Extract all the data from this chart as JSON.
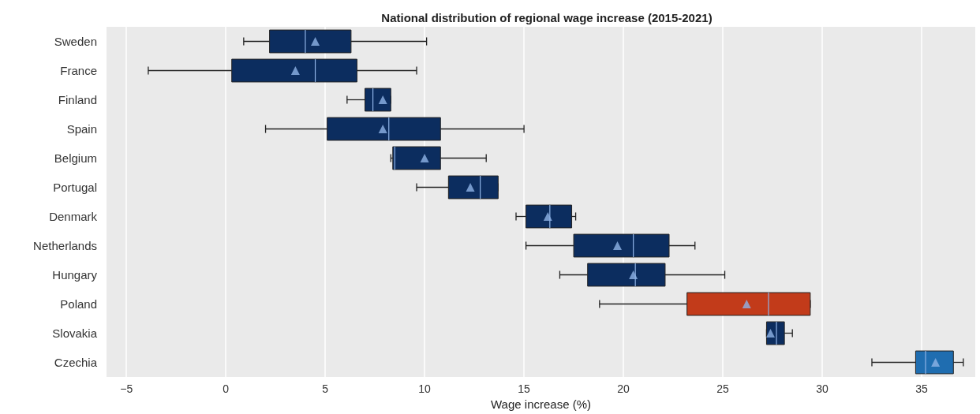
{
  "chart_data": {
    "type": "box",
    "title": "National distribution of regional wage increase (2015-2021)",
    "xlabel": "Wage increase (%)",
    "orientation": "horizontal",
    "categories": [
      "Sweden",
      "France",
      "Finland",
      "Spain",
      "Belgium",
      "Portugal",
      "Denmark",
      "Netherlands",
      "Hungary",
      "Poland",
      "Slovakia",
      "Czechia"
    ],
    "boxes": [
      {
        "low": 0.9,
        "q1": 2.2,
        "median": 4.0,
        "q3": 6.3,
        "high": 10.1,
        "mean": 4.5
      },
      {
        "low": -3.9,
        "q1": 0.3,
        "median": 4.5,
        "q3": 6.6,
        "high": 9.6,
        "mean": 3.5
      },
      {
        "low": 6.1,
        "q1": 7.0,
        "median": 7.4,
        "q3": 8.3,
        "high": 8.3,
        "mean": 7.9
      },
      {
        "low": 2.0,
        "q1": 5.1,
        "median": 8.2,
        "q3": 10.8,
        "high": 15.0,
        "mean": 7.9
      },
      {
        "low": 8.3,
        "q1": 8.4,
        "median": 8.5,
        "q3": 10.8,
        "high": 13.1,
        "mean": 10.0
      },
      {
        "low": 9.6,
        "q1": 11.2,
        "median": 12.8,
        "q3": 13.7,
        "high": 13.7,
        "mean": 12.3
      },
      {
        "low": 14.6,
        "q1": 15.1,
        "median": 16.3,
        "q3": 17.4,
        "high": 17.6,
        "mean": 16.2
      },
      {
        "low": 15.1,
        "q1": 17.5,
        "median": 20.5,
        "q3": 22.3,
        "high": 23.6,
        "mean": 19.7
      },
      {
        "low": 16.8,
        "q1": 18.2,
        "median": 20.6,
        "q3": 22.1,
        "high": 25.1,
        "mean": 20.5
      },
      {
        "low": 18.8,
        "q1": 23.2,
        "median": 27.3,
        "q3": 29.4,
        "high": 29.4,
        "mean": 26.2
      },
      {
        "low": 27.2,
        "q1": 27.2,
        "median": 27.7,
        "q3": 28.1,
        "high": 28.5,
        "mean": 27.4
      },
      {
        "low": 32.5,
        "q1": 34.7,
        "median": 35.2,
        "q3": 36.6,
        "high": 37.1,
        "mean": 35.7
      }
    ],
    "colors": [
      "#0c2d5f",
      "#0c2d5f",
      "#0c2d5f",
      "#0c2d5f",
      "#0c2d5f",
      "#0c2d5f",
      "#0c2d5f",
      "#0c2d5f",
      "#0c2d5f",
      "#c23b1a",
      "#0c2d5f",
      "#1f6db0"
    ],
    "xlim": [
      -6,
      37.7
    ],
    "xticks": [
      -5,
      0,
      5,
      10,
      15,
      20,
      25,
      30,
      35
    ],
    "grid": "x",
    "marker": "triangle"
  }
}
